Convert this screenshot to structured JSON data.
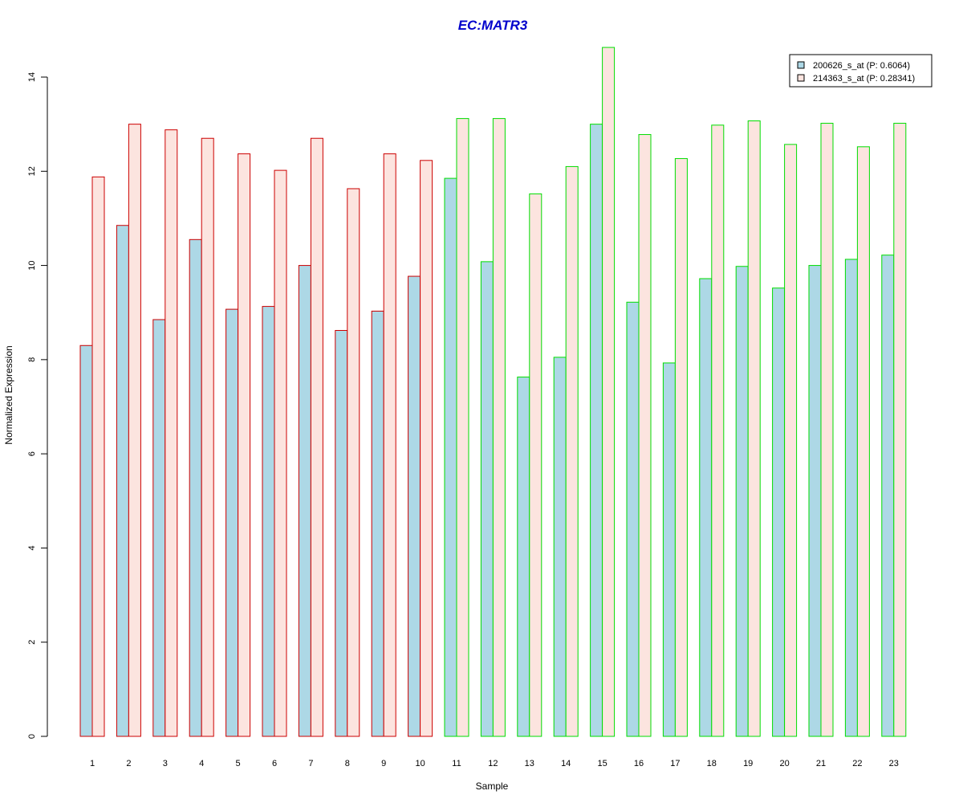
{
  "chart_data": {
    "type": "bar",
    "title": "EC:MATR3",
    "xlabel": "Sample",
    "ylabel": "Normalized Expression",
    "ylim": [
      0,
      14
    ],
    "yticks": [
      0,
      2,
      4,
      6,
      8,
      10,
      12,
      14
    ],
    "grid": false,
    "legend_position": "top-right",
    "categories": [
      "1",
      "2",
      "3",
      "4",
      "5",
      "6",
      "7",
      "8",
      "9",
      "10",
      "11",
      "12",
      "13",
      "14",
      "15",
      "16",
      "17",
      "18",
      "19",
      "20",
      "21",
      "22",
      "23"
    ],
    "group_outline": [
      "red",
      "red",
      "red",
      "red",
      "red",
      "red",
      "red",
      "red",
      "red",
      "red",
      "green",
      "green",
      "green",
      "green",
      "green",
      "green",
      "green",
      "green",
      "green",
      "green",
      "green",
      "green",
      "green"
    ],
    "series": [
      {
        "name": "200626_s_at (P: 0.6064)",
        "fill": "#add8e6",
        "values": [
          8.3,
          10.85,
          8.85,
          10.55,
          9.07,
          9.13,
          10.0,
          8.62,
          9.03,
          9.77,
          11.85,
          10.08,
          7.63,
          8.05,
          13.0,
          9.22,
          7.93,
          9.72,
          9.98,
          9.52,
          10.0,
          10.13,
          10.22
        ]
      },
      {
        "name": "214363_s_at (P: 0.28341)",
        "fill": "#fce4df",
        "values": [
          11.88,
          13.0,
          12.88,
          12.7,
          12.37,
          12.02,
          12.7,
          11.63,
          12.37,
          12.23,
          13.12,
          13.12,
          11.52,
          12.1,
          14.63,
          12.78,
          12.27,
          12.98,
          13.07,
          12.57,
          13.02,
          12.52,
          13.02
        ]
      }
    ]
  },
  "colors": {
    "title": "#0000cc",
    "outline_red": "#cc0000",
    "outline_green": "#00dd00"
  }
}
